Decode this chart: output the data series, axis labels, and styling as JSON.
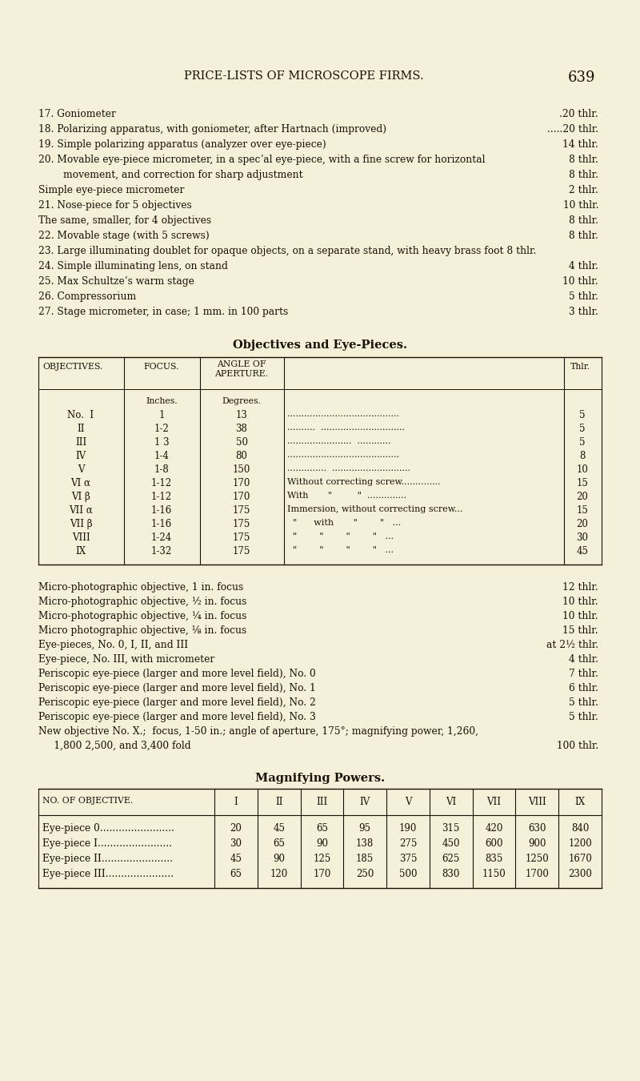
{
  "bg_color": "#f5f0d8",
  "page_title": "PRICE-LISTS OF MICROSCOPE FIRMS.",
  "page_number": "639",
  "obj_section_title": "Objectives and Eye-Pieces.",
  "mag_section_title": "Magnifying Powers.",
  "mag_table_header": [
    "NO. OF OBJECTIVE.",
    "I",
    "II",
    "III",
    "IV",
    "V",
    "VI",
    "VII",
    "VIII",
    "IX"
  ],
  "mag_rows": [
    [
      "Eye-piece 0........................",
      "20",
      "45",
      "65",
      "95",
      "190",
      "315",
      "420",
      "630",
      "840"
    ],
    [
      "Eye-piece I........................",
      "30",
      "65",
      "90",
      "138",
      "275",
      "450",
      "600",
      "900",
      "1200"
    ],
    [
      "Eye-piece II.......................",
      "45",
      "90",
      "125",
      "185",
      "375",
      "625",
      "835",
      "1250",
      "1670"
    ],
    [
      "Eye-piece III......................",
      "65",
      "120",
      "170",
      "250",
      "500",
      "830",
      "1150",
      "1700",
      "2300"
    ]
  ]
}
